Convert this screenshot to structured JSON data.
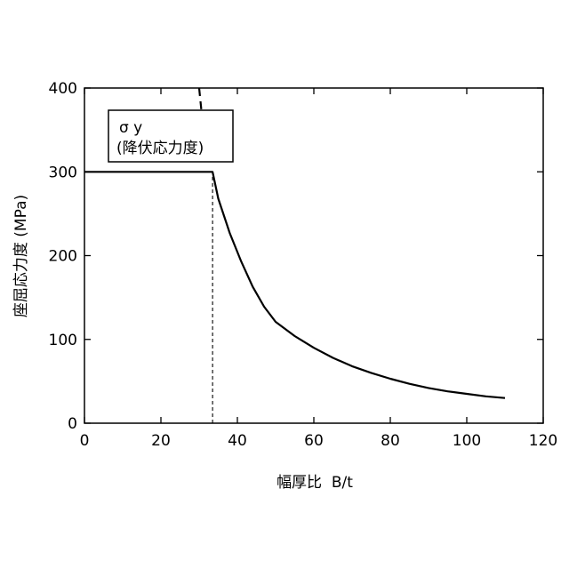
{
  "chart_data": {
    "type": "line",
    "xlabel": "幅厚比  B/t",
    "ylabel": "座屈応力度 (MPa)",
    "xlim": [
      0,
      120
    ],
    "ylim": [
      0,
      400
    ],
    "xticks": [
      0,
      20,
      40,
      60,
      80,
      100,
      120
    ],
    "yticks": [
      0,
      100,
      200,
      300,
      400
    ],
    "grid": false,
    "annotation": {
      "line1": "σ y",
      "line2": "(降伏応力度)"
    },
    "series": [
      {
        "style": "solid",
        "x": [
          0,
          33.5,
          35,
          38,
          41,
          44,
          47,
          50,
          55,
          60,
          65,
          70,
          75,
          80,
          85,
          90,
          95,
          100,
          105,
          110
        ],
        "y": [
          300,
          300,
          268,
          227,
          193,
          163,
          139,
          121,
          104,
          90,
          78,
          68,
          60,
          53,
          47,
          42,
          38,
          35,
          32,
          30
        ]
      },
      {
        "style": "dashed",
        "x": [
          30,
          30.4,
          30.8
        ],
        "y": [
          400,
          382,
          364
        ]
      },
      {
        "style": "dotted-vertical",
        "x": [
          33.5,
          33.5
        ],
        "y": [
          0,
          300
        ]
      }
    ]
  }
}
